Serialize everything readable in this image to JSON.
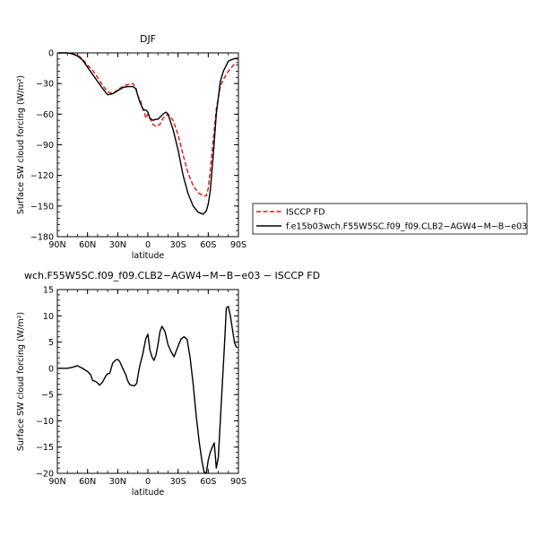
{
  "chart_data": [
    {
      "type": "line",
      "title": "DJF",
      "xlabel": "latitude",
      "ylabel": "Surface SW cloud forcing (W/m²)",
      "xlim": [
        90,
        -90
      ],
      "ylim": [
        -180,
        0
      ],
      "xticks": [
        90,
        60,
        30,
        0,
        -30,
        -60,
        -90
      ],
      "xtick_labels": [
        "90N",
        "60N",
        "30N",
        "0",
        "30S",
        "60S",
        "90S"
      ],
      "yticks": [
        0,
        -30,
        -60,
        -90,
        -120,
        -150,
        -180
      ],
      "ytick_labels": [
        "0",
        "−30",
        "−60",
        "−90",
        "−120",
        "−150",
        "−180"
      ],
      "legend_position": "right",
      "series": [
        {
          "name": "ISCCP FD",
          "color": "#e01010",
          "dash": "dashed",
          "x": [
            89,
            80,
            75,
            70,
            65,
            60,
            55,
            50,
            45,
            40,
            35,
            30,
            25,
            20,
            15,
            12,
            10,
            7,
            5,
            3,
            2,
            0,
            -2,
            -5,
            -8,
            -12,
            -15,
            -20,
            -25,
            -30,
            -35,
            -40,
            -45,
            -50,
            -55,
            -58,
            -60,
            -62,
            -65,
            -68,
            -72,
            -75,
            -80,
            -85,
            -89
          ],
          "y": [
            0,
            0,
            -1,
            -2,
            -6,
            -12,
            -17,
            -24,
            -32,
            -38,
            -40,
            -36,
            -33,
            -31,
            -30,
            -34,
            -42,
            -48,
            -55,
            -60,
            -64,
            -60,
            -64,
            -70,
            -72,
            -70,
            -64,
            -60,
            -66,
            -80,
            -100,
            -118,
            -130,
            -137,
            -140,
            -140,
            -133,
            -115,
            -85,
            -55,
            -33,
            -26,
            -18,
            -12,
            -9
          ]
        },
        {
          "name": "f.e15b03wch.F55W5SC.f09_f09.CLB2−AGW4−M−B−e03",
          "color": "#000000",
          "dash": "solid",
          "x": [
            89,
            80,
            75,
            70,
            65,
            60,
            55,
            50,
            45,
            40,
            35,
            30,
            25,
            20,
            15,
            12,
            10,
            8,
            5,
            3,
            2,
            0,
            -2,
            -5,
            -8,
            -10,
            -12,
            -15,
            -18,
            -20,
            -25,
            -30,
            -35,
            -40,
            -45,
            -50,
            -55,
            -58,
            -60,
            -62,
            -65,
            -68,
            -72,
            -75,
            -80,
            -85,
            -89
          ],
          "y": [
            0,
            0,
            -1,
            -3,
            -7,
            -14,
            -21,
            -28,
            -35,
            -41,
            -40,
            -37,
            -34,
            -33,
            -33,
            -35,
            -42,
            -48,
            -55,
            -56,
            -56,
            -58,
            -64,
            -66,
            -65,
            -65,
            -63,
            -60,
            -58,
            -60,
            -75,
            -95,
            -120,
            -138,
            -150,
            -156,
            -158,
            -155,
            -148,
            -135,
            -100,
            -60,
            -28,
            -18,
            -8,
            -6,
            -5
          ]
        }
      ]
    },
    {
      "type": "line",
      "title": "wch.F55W5SC.f09_f09.CLB2−AGW4−M−B−e03 − ISCCP FD",
      "xlabel": "latitude",
      "ylabel": "Surface SW cloud forcing (W/m²)",
      "xlim": [
        90,
        -90
      ],
      "ylim": [
        -20,
        15
      ],
      "xticks": [
        90,
        60,
        30,
        0,
        -30,
        -60,
        -90
      ],
      "xtick_labels": [
        "90N",
        "60N",
        "30N",
        "0",
        "30S",
        "60S",
        "90S"
      ],
      "yticks": [
        15,
        10,
        5,
        0,
        -5,
        -10,
        -15,
        -20
      ],
      "ytick_labels": [
        "15",
        "10",
        "5",
        "0",
        "−5",
        "−10",
        "−15",
        "−20"
      ],
      "series": [
        {
          "name": "",
          "color": "#000000",
          "dash": "solid",
          "x": [
            89,
            80,
            75,
            70,
            65,
            60,
            57,
            55,
            52,
            50,
            48,
            45,
            42,
            40,
            38,
            35,
            32,
            30,
            28,
            25,
            22,
            20,
            18,
            15,
            13,
            11,
            10,
            8,
            5,
            3,
            2,
            0,
            -2,
            -4,
            -6,
            -8,
            -10,
            -12,
            -14,
            -17,
            -20,
            -23,
            -26,
            -30,
            -33,
            -36,
            -39,
            -42,
            -45,
            -48,
            -51,
            -54,
            -56,
            -58,
            -60,
            -62,
            -64,
            -66,
            -68,
            -70,
            -72,
            -74,
            -76,
            -78,
            -80,
            -82,
            -84,
            -86,
            -88
          ],
          "y": [
            0,
            0,
            0.2,
            0.5,
            0,
            -0.6,
            -1.2,
            -2.3,
            -2.5,
            -2.8,
            -3.2,
            -2.6,
            -1.5,
            -1.0,
            -1.0,
            1.0,
            1.6,
            1.7,
            1.3,
            0,
            -1.2,
            -2.4,
            -3.1,
            -3.3,
            -3.3,
            -2.8,
            -1.5,
            0.5,
            2.8,
            4.8,
            5.7,
            6.5,
            3.5,
            2.2,
            1.5,
            2.5,
            4.5,
            7.0,
            8.0,
            7.0,
            4.5,
            3.2,
            2.2,
            4.2,
            5.6,
            6.0,
            5.5,
            2.0,
            -3.0,
            -9.0,
            -14.0,
            -18.0,
            -19.8,
            -20.0,
            -17.5,
            -16.0,
            -15.0,
            -14.2,
            -19.0,
            -17.0,
            -10.0,
            -3.0,
            4.0,
            11.5,
            11.8,
            10.0,
            7.5,
            5.0,
            4.0
          ]
        }
      ]
    }
  ]
}
